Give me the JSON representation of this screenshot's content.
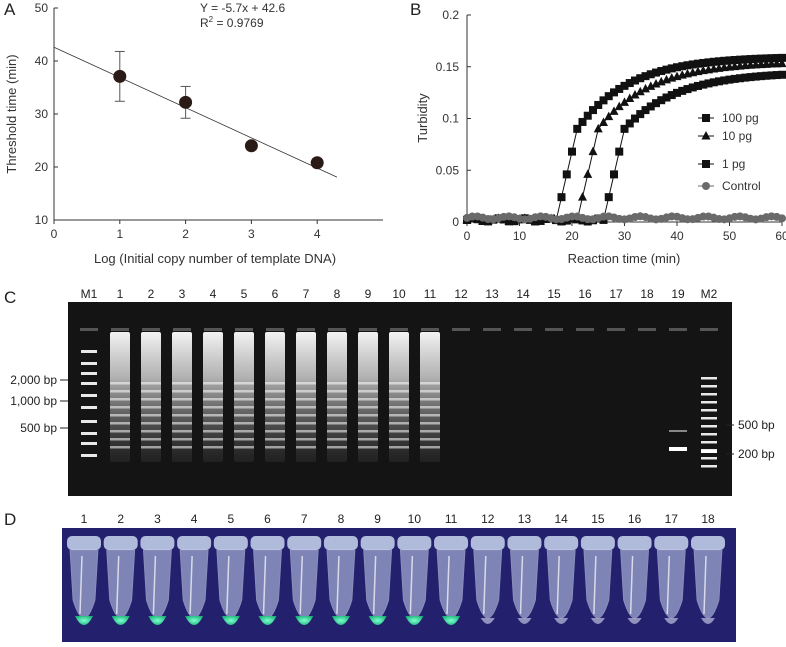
{
  "panels": {
    "a": "A",
    "b": "B",
    "c": "C",
    "d": "D"
  },
  "chart_data": [
    {
      "type": "scatter",
      "panel": "A",
      "title": "",
      "xlabel": "Log (Initial copy number of template DNA)",
      "ylabel": "Threshold time (min)",
      "xlim": [
        0,
        5
      ],
      "ylim": [
        10,
        50
      ],
      "xticks": [
        0,
        1,
        2,
        3,
        4
      ],
      "yticks": [
        10,
        20,
        30,
        40,
        50
      ],
      "x": [
        1,
        2,
        3,
        4
      ],
      "y": [
        37.1,
        32.2,
        24.0,
        20.8
      ],
      "err": [
        4.7,
        3.0,
        0,
        0
      ],
      "fit": {
        "slope": -5.7,
        "intercept": 42.6,
        "x_range": [
          0,
          4.3
        ]
      },
      "annotation_eq": "Y = -5.7x + 42.6",
      "annotation_r2_prefix": "R",
      "annotation_r2_sup": "2",
      "annotation_r2_value": " = 0.9769",
      "grid": false
    },
    {
      "type": "line",
      "panel": "B",
      "title": "",
      "xlabel": "Reaction time (min)",
      "ylabel": "Turbidity",
      "xlim": [
        0,
        60
      ],
      "ylim": [
        0,
        0.2
      ],
      "xticks": [
        0,
        10,
        20,
        30,
        40,
        50,
        60
      ],
      "yticks": [
        0,
        0.05,
        0.1,
        0.15,
        0.2
      ],
      "ytick_labels": [
        "0",
        "0.05",
        "0.1",
        "0.15",
        "0.2"
      ],
      "legend_position": "right",
      "series": [
        {
          "name": "100 pg",
          "marker": "square",
          "onset": 17,
          "rise_end": 21,
          "plateau": 0.16
        },
        {
          "name": "10 pg",
          "marker": "triangle",
          "onset": 21,
          "rise_end": 25,
          "plateau": 0.155
        },
        {
          "name": "1 pg",
          "marker": "square",
          "onset": 26,
          "rise_end": 30,
          "plateau": 0.145
        },
        {
          "name": "Control",
          "marker": "circle",
          "onset": null,
          "rise_end": null,
          "plateau": 0.004
        }
      ]
    }
  ],
  "gel": {
    "lanes": [
      "M1",
      "1",
      "2",
      "3",
      "4",
      "5",
      "6",
      "7",
      "8",
      "9",
      "10",
      "11",
      "12",
      "13",
      "14",
      "15",
      "16",
      "17",
      "18",
      "19",
      "M2"
    ],
    "left_markers": [
      "2,000 bp",
      "1,000 bp",
      "500 bp"
    ],
    "right_markers": [
      "500 bp",
      "200 bp"
    ],
    "positive_lanes": [
      "1",
      "2",
      "3",
      "4",
      "5",
      "6",
      "7",
      "8",
      "9",
      "10",
      "11"
    ],
    "single_band_lane": "19"
  },
  "tubes": {
    "labels": [
      "1",
      "2",
      "3",
      "4",
      "5",
      "6",
      "7",
      "8",
      "9",
      "10",
      "11",
      "12",
      "13",
      "14",
      "15",
      "16",
      "17",
      "18"
    ],
    "fluorescent": [
      "1",
      "2",
      "3",
      "4",
      "5",
      "6",
      "7",
      "8",
      "9",
      "10",
      "11"
    ],
    "colors": {
      "background": "#23206e",
      "fluorescence": "#3fe0a0",
      "tube": "#c9d6ef"
    }
  }
}
